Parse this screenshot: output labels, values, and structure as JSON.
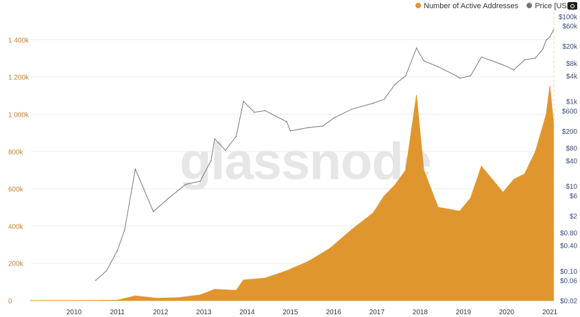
{
  "legend": {
    "series1": "Number of Active Addresses",
    "series2": "Price [USD]",
    "color1": "#e0962e",
    "color2": "#777777"
  },
  "watermark": "glassnode",
  "chart_data": {
    "type": "line",
    "x_ticks": [
      "2010",
      "2011",
      "2012",
      "2013",
      "2014",
      "2015",
      "2016",
      "2017",
      "2018",
      "2019",
      "2020",
      "2021"
    ],
    "y_left": {
      "ticks": [
        "0",
        "200k",
        "400k",
        "600k",
        "800k",
        "1 000k",
        "1 200k",
        "1 400k"
      ],
      "range": [
        0,
        1400000
      ]
    },
    "y_right": {
      "scale": "log",
      "ticks": [
        "$100k",
        "$60k",
        "$20k",
        "$8k",
        "$4k",
        "$1k",
        "$600",
        "$200",
        "$80",
        "$40",
        "$10",
        "$6",
        "$2",
        "$0.80",
        "$0.40",
        "$0.10",
        "$0.06",
        "$0.02"
      ],
      "range": [
        0.02,
        100000
      ]
    },
    "series": [
      {
        "name": "Number of Active Addresses",
        "color": "#e0962e",
        "points": [
          [
            "2009-01",
            0
          ],
          [
            "2010-06",
            500
          ],
          [
            "2011-01",
            2000
          ],
          [
            "2011-06",
            25000
          ],
          [
            "2011-12",
            12000
          ],
          [
            "2012-06",
            15000
          ],
          [
            "2012-12",
            30000
          ],
          [
            "2013-04",
            60000
          ],
          [
            "2013-10",
            55000
          ],
          [
            "2013-12",
            110000
          ],
          [
            "2014-06",
            120000
          ],
          [
            "2014-12",
            160000
          ],
          [
            "2015-06",
            210000
          ],
          [
            "2015-12",
            280000
          ],
          [
            "2016-06",
            380000
          ],
          [
            "2016-12",
            470000
          ],
          [
            "2017-03",
            560000
          ],
          [
            "2017-06",
            620000
          ],
          [
            "2017-09",
            700000
          ],
          [
            "2017-12",
            1100000
          ],
          [
            "2018-02",
            700000
          ],
          [
            "2018-06",
            500000
          ],
          [
            "2018-12",
            480000
          ],
          [
            "2019-03",
            550000
          ],
          [
            "2019-06",
            720000
          ],
          [
            "2019-09",
            650000
          ],
          [
            "2019-12",
            580000
          ],
          [
            "2020-03",
            650000
          ],
          [
            "2020-06",
            680000
          ],
          [
            "2020-09",
            800000
          ],
          [
            "2020-12",
            1000000
          ],
          [
            "2021-01",
            1150000
          ],
          [
            "2021-02",
            950000
          ]
        ]
      },
      {
        "name": "Price [USD]",
        "color": "#777777",
        "points": [
          [
            "2010-07",
            0.06
          ],
          [
            "2010-10",
            0.1
          ],
          [
            "2011-01",
            0.3
          ],
          [
            "2011-03",
            0.9
          ],
          [
            "2011-06",
            25
          ],
          [
            "2011-08",
            10
          ],
          [
            "2011-11",
            2.5
          ],
          [
            "2012-03",
            5
          ],
          [
            "2012-08",
            11
          ],
          [
            "2012-12",
            13
          ],
          [
            "2013-03",
            40
          ],
          [
            "2013-04",
            130
          ],
          [
            "2013-07",
            70
          ],
          [
            "2013-10",
            150
          ],
          [
            "2013-12",
            1000
          ],
          [
            "2014-03",
            550
          ],
          [
            "2014-06",
            600
          ],
          [
            "2014-12",
            330
          ],
          [
            "2015-01",
            200
          ],
          [
            "2015-06",
            240
          ],
          [
            "2015-10",
            260
          ],
          [
            "2016-01",
            400
          ],
          [
            "2016-06",
            650
          ],
          [
            "2016-12",
            900
          ],
          [
            "2017-03",
            1100
          ],
          [
            "2017-06",
            2500
          ],
          [
            "2017-09",
            4000
          ],
          [
            "2017-12",
            18000
          ],
          [
            "2018-02",
            9000
          ],
          [
            "2018-06",
            6500
          ],
          [
            "2018-11",
            4000
          ],
          [
            "2018-12",
            3500
          ],
          [
            "2019-03",
            4000
          ],
          [
            "2019-06",
            11000
          ],
          [
            "2019-09",
            9000
          ],
          [
            "2019-12",
            7200
          ],
          [
            "2020-03",
            5500
          ],
          [
            "2020-06",
            9500
          ],
          [
            "2020-09",
            10500
          ],
          [
            "2020-11",
            17000
          ],
          [
            "2020-12",
            28000
          ],
          [
            "2021-01",
            33000
          ],
          [
            "2021-02",
            48000
          ]
        ]
      }
    ]
  }
}
